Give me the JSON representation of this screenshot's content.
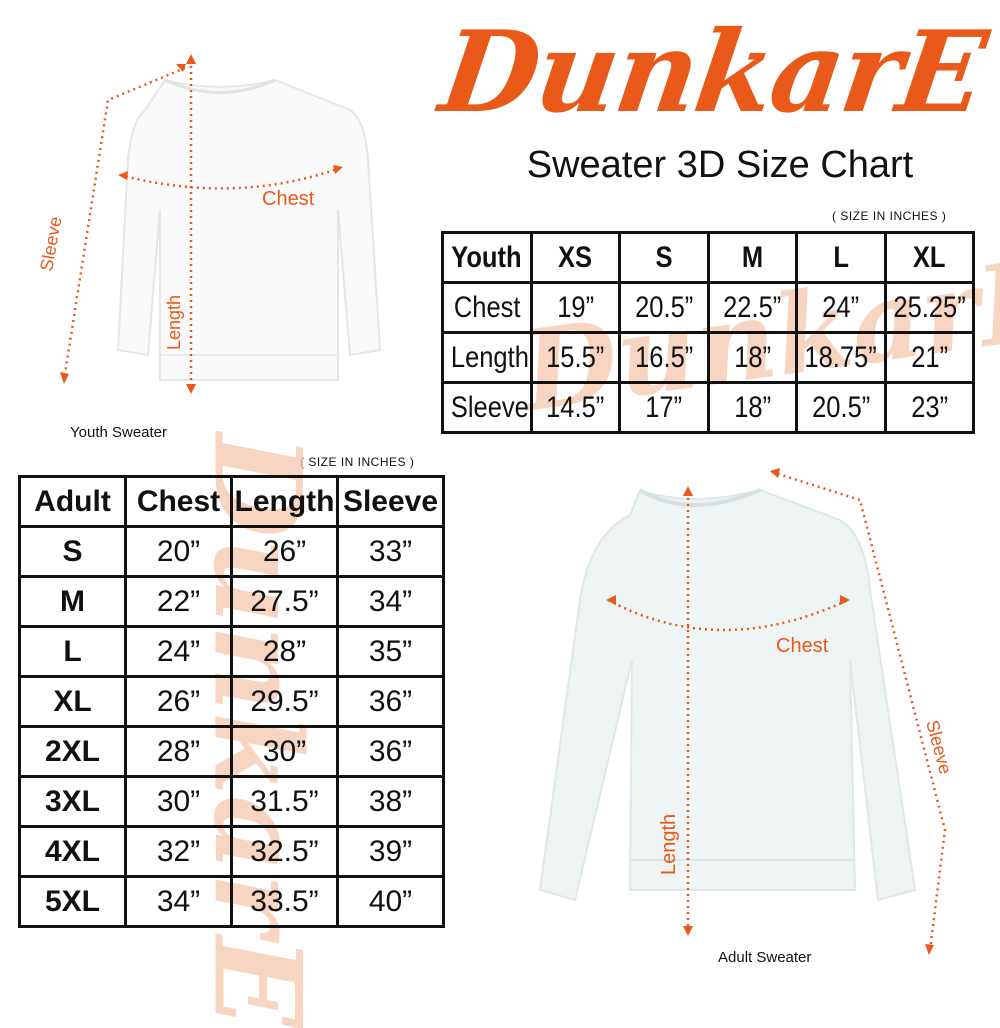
{
  "brand": {
    "logo_text": "DunkarE",
    "color": "#e8591a"
  },
  "title": "Sweater 3D Size Chart",
  "youth": {
    "units_note": "( SIZE IN INCHES )",
    "caption": "Youth Sweater",
    "diagram_labels": {
      "chest": "Chest",
      "length": "Length",
      "sleeve": "Sleeve"
    },
    "header": [
      "Youth",
      "XS",
      "S",
      "M",
      "L",
      "XL"
    ],
    "rows": [
      [
        "Chest",
        "19”",
        "20.5”",
        "22.5”",
        "24”",
        "25.25”"
      ],
      [
        "Length",
        "15.5”",
        "16.5”",
        "18”",
        "18.75”",
        "21”"
      ],
      [
        "Sleeve",
        "14.5”",
        "17”",
        "18”",
        "20.5”",
        "23”"
      ]
    ]
  },
  "adult": {
    "units_note": "( SIZE IN INCHES )",
    "caption": "Adult Sweater",
    "diagram_labels": {
      "chest": "Chest",
      "length": "Length",
      "sleeve": "Sleeve"
    },
    "header": [
      "Adult",
      "Chest",
      "Length",
      "Sleeve"
    ],
    "rows": [
      [
        "S",
        "20”",
        "26”",
        "33”"
      ],
      [
        "M",
        "22”",
        "27.5”",
        "34”"
      ],
      [
        "L",
        "24”",
        "28”",
        "35”"
      ],
      [
        "XL",
        "26”",
        "29.5”",
        "36”"
      ],
      [
        "2XL",
        "28”",
        "30”",
        "36”"
      ],
      [
        "3XL",
        "30”",
        "31.5”",
        "38”"
      ],
      [
        "4XL",
        "32”",
        "32.5”",
        "39”"
      ],
      [
        "5XL",
        "34”",
        "33.5”",
        "40”"
      ]
    ]
  }
}
